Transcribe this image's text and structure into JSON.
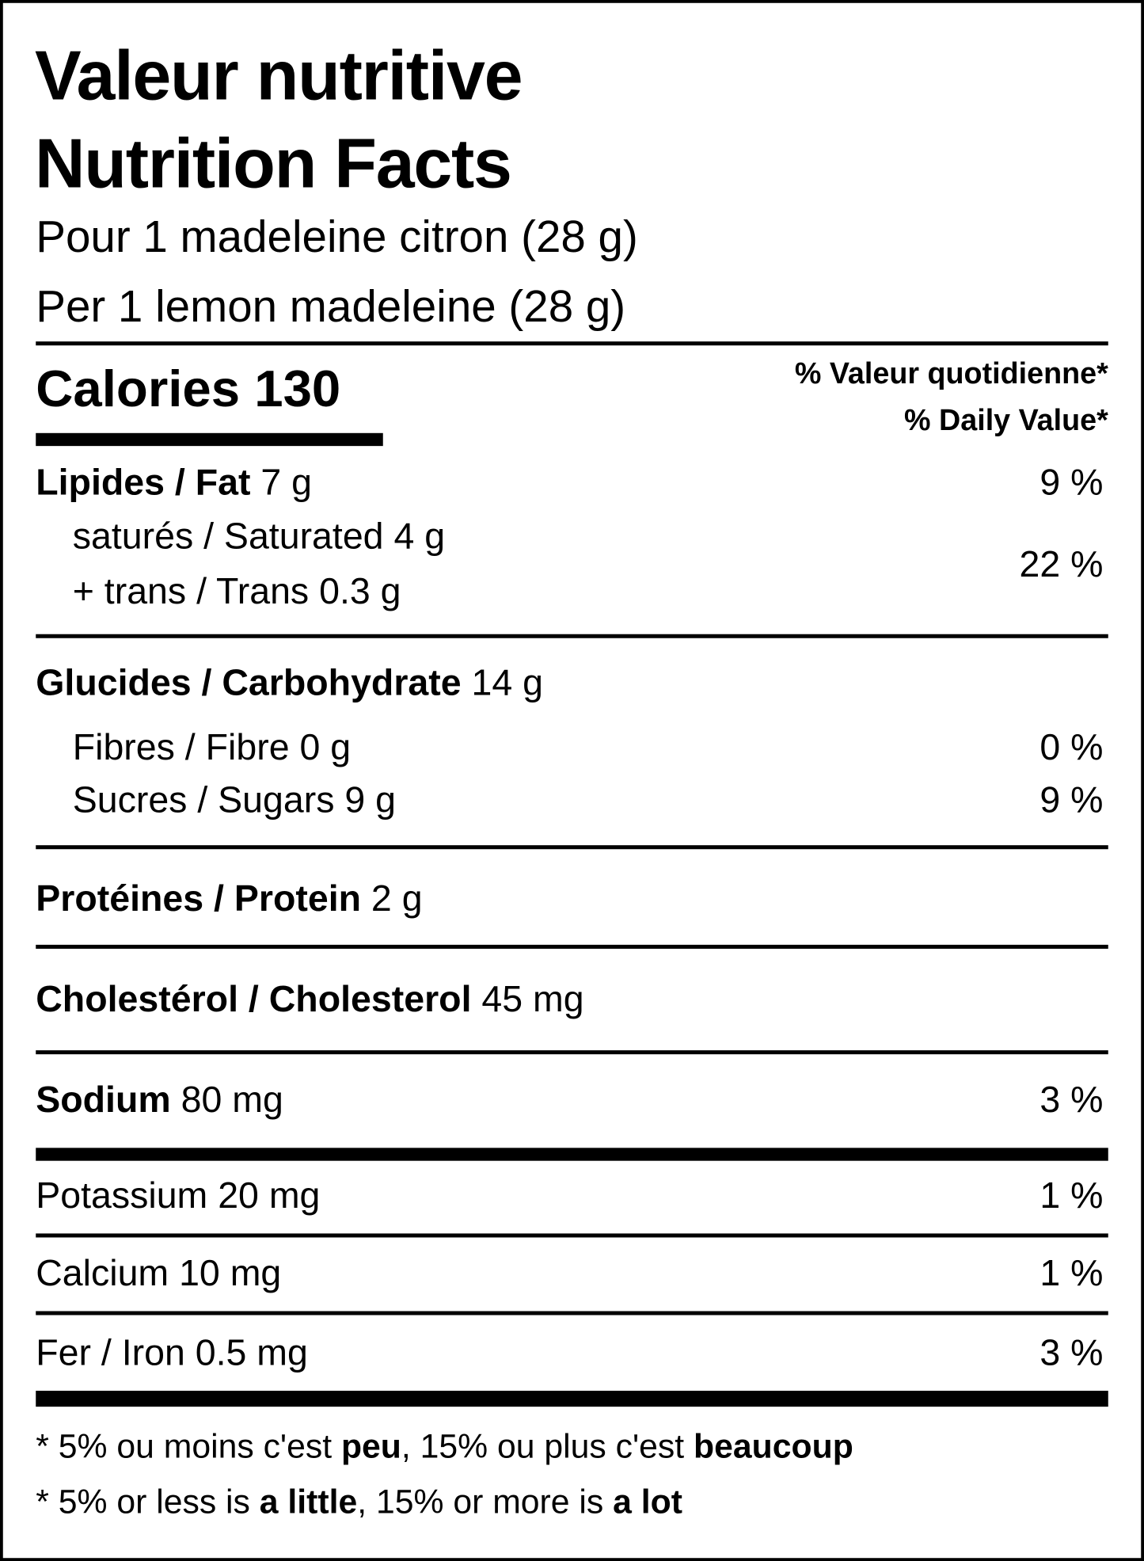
{
  "title_fr": "Valeur nutritive",
  "title_en": "Nutrition Facts",
  "serving_fr": "Pour 1 madeleine citron (28 g)",
  "serving_en": "Per 1 lemon madeleine (28 g)",
  "calories": "Calories 130",
  "dv_header_fr": "% Valeur quotidienne*",
  "dv_header_en": "% Daily Value*",
  "fat": {
    "label": "Lipides / Fat",
    "amount": " 7 g",
    "dv": "9 %"
  },
  "saturated": {
    "label": "saturés / Saturated 4 g"
  },
  "trans": {
    "label": "+ trans / Trans 0.3 g"
  },
  "sat_trans_dv": "22 %",
  "carb": {
    "label": "Glucides / Carbohydrate",
    "amount": " 14 g"
  },
  "fibre": {
    "label": "Fibres / Fibre 0 g",
    "dv": "0 %"
  },
  "sugars": {
    "label": "Sucres / Sugars 9 g",
    "dv": "9 %"
  },
  "protein": {
    "label": "Protéines / Protein",
    "amount": " 2 g"
  },
  "cholesterol": {
    "label": "Cholestérol / Cholesterol",
    "amount": " 45 mg"
  },
  "sodium": {
    "label": "Sodium",
    "amount": " 80 mg",
    "dv": "3 %"
  },
  "potassium": {
    "label": "Potassium 20 mg",
    "dv": "1 %"
  },
  "calcium": {
    "label": "Calcium 10 mg",
    "dv": "1 %"
  },
  "iron": {
    "label": "Fer / Iron 0.5 mg",
    "dv": "3 %"
  },
  "footnote_fr": {
    "p1": "* 5% ou moins c'est ",
    "b1": "peu",
    "p2": ", 15% ou plus c'est ",
    "b2": "beaucoup"
  },
  "footnote_en": {
    "p1": "* 5% or less is ",
    "b1": "a little",
    "p2": ", 15% or more is ",
    "b2": "a lot"
  }
}
